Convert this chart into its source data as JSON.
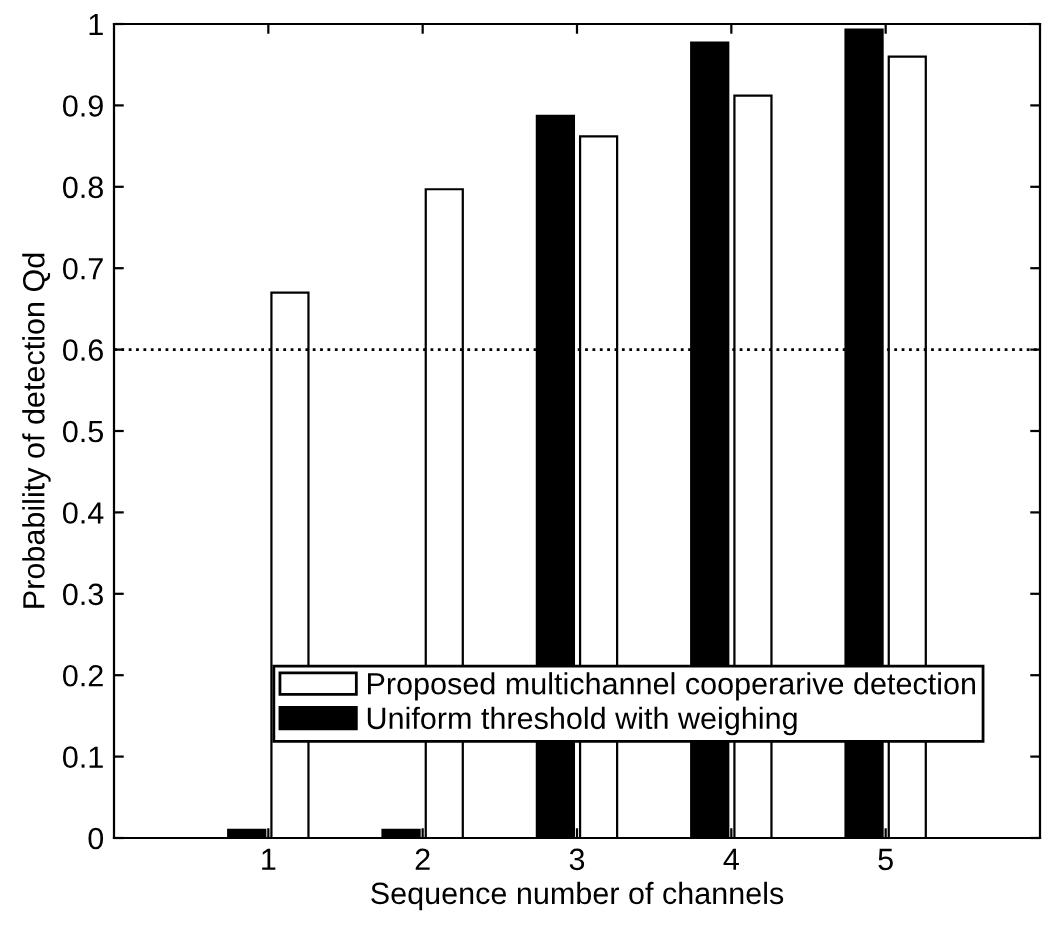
{
  "chart_data": {
    "type": "bar",
    "xlabel": "Sequence number of channels",
    "ylabel": "Probability of detection Qd",
    "categories": [
      "1",
      "2",
      "3",
      "4",
      "5"
    ],
    "series": [
      {
        "name": "Uniform threshold with weighing",
        "color": "#000000",
        "values": [
          0.01,
          0.01,
          0.887,
          0.977,
          0.993
        ]
      },
      {
        "name": "Proposed multichannel cooperarive detection",
        "color": "#ffffff",
        "values": [
          0.67,
          0.797,
          0.862,
          0.912,
          0.96
        ]
      }
    ],
    "ylim": [
      0,
      1
    ],
    "yticks": [
      0,
      0.1,
      0.2,
      0.3,
      0.4,
      0.5,
      0.6,
      0.7,
      0.8,
      0.9,
      1
    ],
    "ref_lines": [
      {
        "axis": "y",
        "value": 0.6,
        "color": "#000000",
        "line_style": "dotted"
      }
    ],
    "grid": false,
    "legend": "bottom right"
  }
}
